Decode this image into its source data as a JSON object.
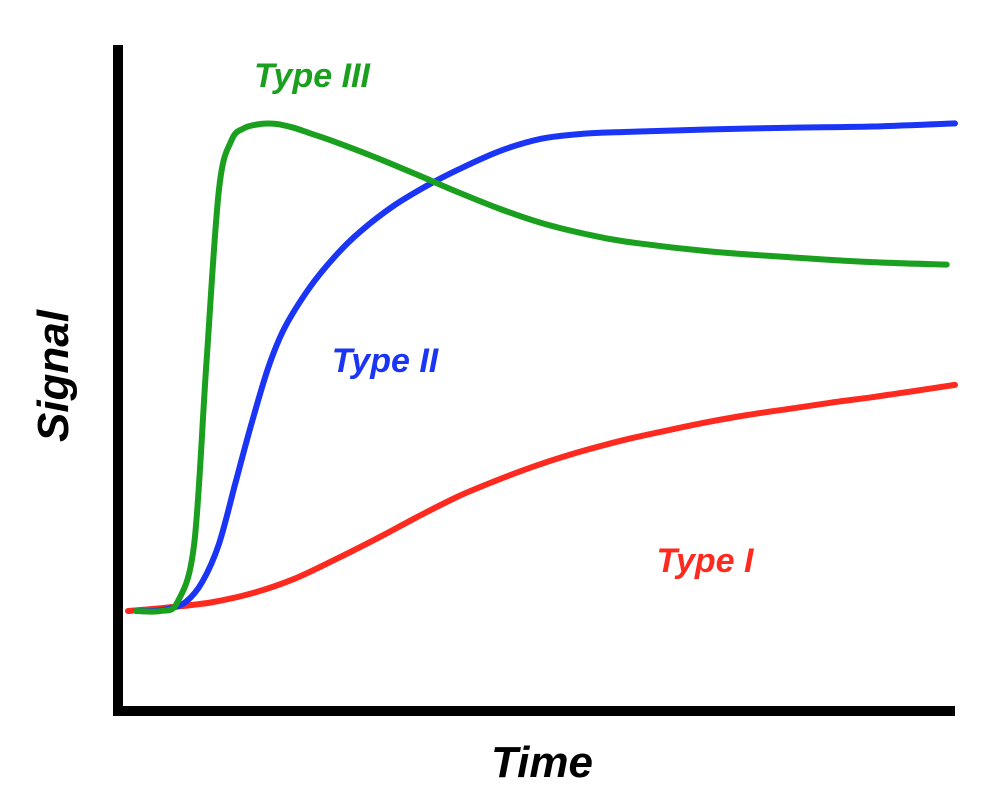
{
  "chart_data": {
    "type": "line",
    "title": "",
    "xlabel": "Time",
    "ylabel": "Signal",
    "grid": false,
    "xlim": [
      0,
      100
    ],
    "ylim": [
      0,
      100
    ],
    "axis_color": "#000000",
    "series": [
      {
        "name": "Type I",
        "color": "#ff2a1f",
        "x": [
          0,
          5,
          10,
          15,
          20,
          25,
          30,
          35,
          40,
          45,
          50,
          55,
          60,
          65,
          70,
          75,
          80,
          85,
          90,
          95,
          100
        ],
        "values": [
          9,
          9.6,
          10.4,
          11.9,
          14.2,
          17.4,
          20.8,
          24.4,
          27.8,
          30.6,
          33.1,
          35.2,
          37,
          38.5,
          39.9,
          41.1,
          42.1,
          43.1,
          44,
          45,
          46
        ]
      },
      {
        "name": "Type II",
        "color": "#1a35f5",
        "x": [
          1,
          3,
          5,
          7,
          9,
          11,
          13,
          15,
          17,
          19,
          22,
          25,
          28,
          32,
          36,
          40,
          45,
          50,
          55,
          60,
          70,
          80,
          90,
          100
        ],
        "values": [
          9,
          9,
          9.4,
          10.5,
          13.8,
          20,
          30,
          40,
          49,
          55.5,
          62,
          67,
          71,
          75.2,
          78.5,
          81.3,
          84.3,
          86.3,
          87.1,
          87.4,
          87.8,
          88.1,
          88.3,
          88.8
        ]
      },
      {
        "name": "Type III",
        "color": "#1aa01e",
        "x": [
          1,
          4,
          6,
          8,
          9.5,
          11,
          12.5,
          14,
          16,
          18,
          20,
          22,
          25,
          30,
          35,
          40,
          45,
          50,
          55,
          60,
          70,
          80,
          90,
          99
        ],
        "values": [
          9,
          9,
          10.5,
          20,
          50,
          78,
          86,
          88,
          88.7,
          88.7,
          88.1,
          87.2,
          85.8,
          83.2,
          80.4,
          77.5,
          74.8,
          72.5,
          70.8,
          69.5,
          67.9,
          66.9,
          66.1,
          65.7
        ]
      }
    ]
  }
}
